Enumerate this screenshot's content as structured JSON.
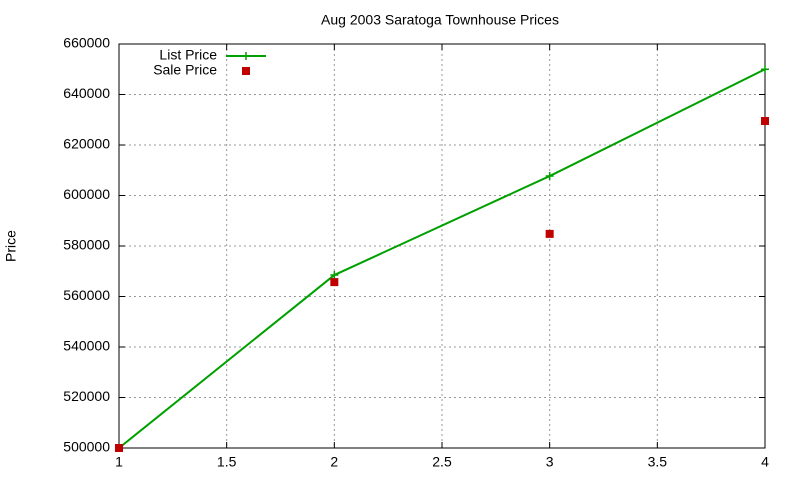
{
  "chart_data": {
    "type": "line",
    "title": "Aug 2003 Saratoga Townhouse Prices",
    "y_label": "Price",
    "x": [
      1,
      2,
      3,
      4
    ],
    "series": [
      {
        "name": "List Price",
        "color": "#00a000",
        "style": "linespoints",
        "values": [
          500000,
          568500,
          607700,
          650000
        ]
      },
      {
        "name": "Sale Price",
        "color": "#c00000",
        "style": "points",
        "values": [
          500000,
          565700,
          584800,
          629500
        ]
      }
    ],
    "xlim": [
      1,
      4
    ],
    "xticks": [
      1,
      1.5,
      2,
      2.5,
      3,
      3.5,
      4
    ],
    "ylim": [
      500000,
      660000
    ],
    "yticks": [
      500000,
      520000,
      540000,
      560000,
      580000,
      600000,
      620000,
      640000,
      660000
    ],
    "grid": true,
    "legend": "top-left"
  }
}
